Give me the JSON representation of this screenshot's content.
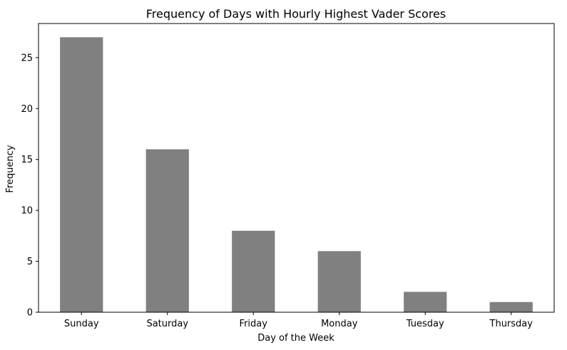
{
  "chart_data": {
    "type": "bar",
    "title": "Frequency of Days with Hourly Highest Vader Scores",
    "xlabel": "Day of the Week",
    "ylabel": "Frequency",
    "categories": [
      "Sunday",
      "Saturday",
      "Friday",
      "Monday",
      "Tuesday",
      "Thursday"
    ],
    "values": [
      27,
      16,
      8,
      6,
      2,
      1
    ],
    "ylim": [
      0,
      28.35
    ],
    "yticks": [
      0,
      5,
      10,
      15,
      20,
      25
    ],
    "bar_color": "#808080",
    "grid": false,
    "legend": "none"
  }
}
